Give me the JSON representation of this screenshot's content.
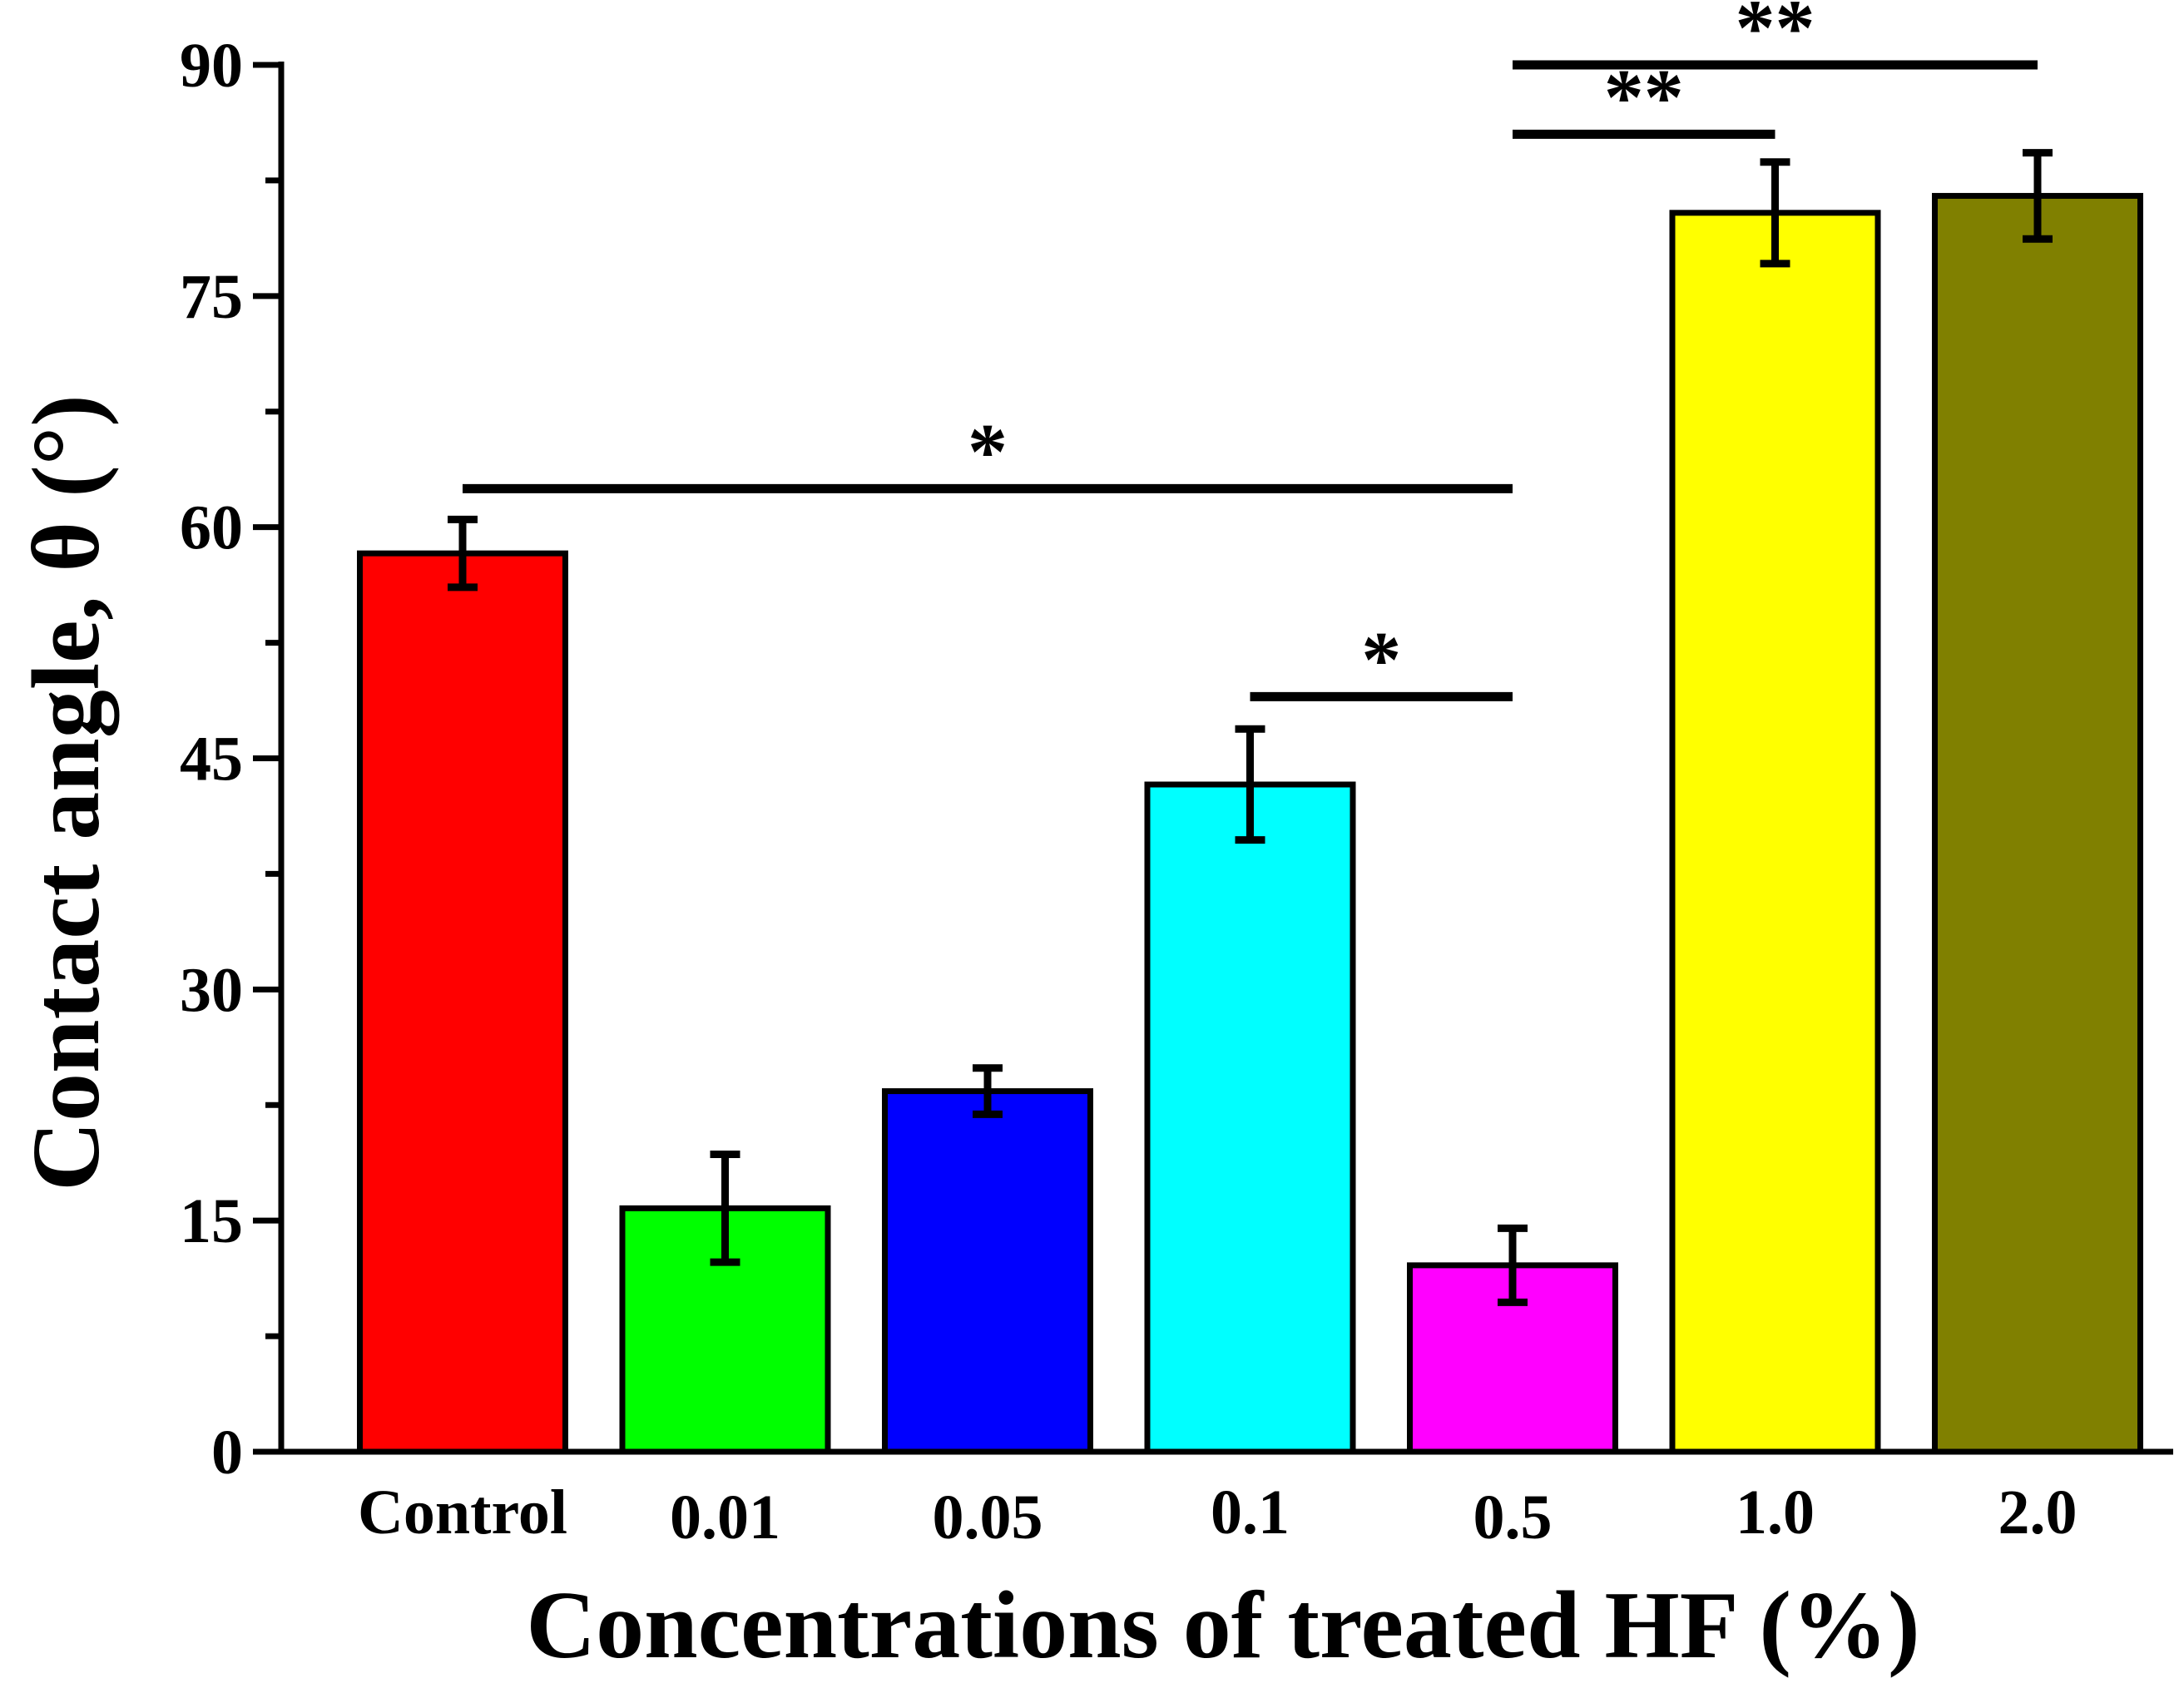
{
  "chart_data": {
    "type": "bar",
    "title": "",
    "xlabel": "Concentrations of treated HF (%)",
    "ylabel": "Contact angle, θ (°)",
    "ylim": [
      0,
      90
    ],
    "yticks": [
      0,
      15,
      30,
      45,
      60,
      75,
      90
    ],
    "ytick_labels": [
      "0",
      "15",
      "30",
      "45",
      "60",
      "75",
      "90"
    ],
    "grid": false,
    "categories": [
      "Control",
      "0.01",
      "0.05",
      "0.1",
      "0.5",
      "1.0",
      "2.0"
    ],
    "values": [
      58.3,
      15.8,
      23.4,
      43.3,
      12.1,
      80.4,
      81.5
    ],
    "errors": [
      2.2,
      3.5,
      1.5,
      3.6,
      2.4,
      3.3,
      2.8
    ],
    "colors": [
      "#ff0000",
      "#00ff00",
      "#0000ff",
      "#00ffff",
      "#ff00ff",
      "#ffff00",
      "#808000"
    ],
    "significance": [
      {
        "from": 0,
        "to": 4,
        "level": 62.5,
        "label": "*"
      },
      {
        "from": 3,
        "to": 4,
        "level": 49.0,
        "label": "*"
      },
      {
        "from": 4,
        "to": 5,
        "level": 85.5,
        "label": "**"
      },
      {
        "from": 4,
        "to": 6,
        "level": 90.0,
        "label": "**"
      }
    ]
  }
}
